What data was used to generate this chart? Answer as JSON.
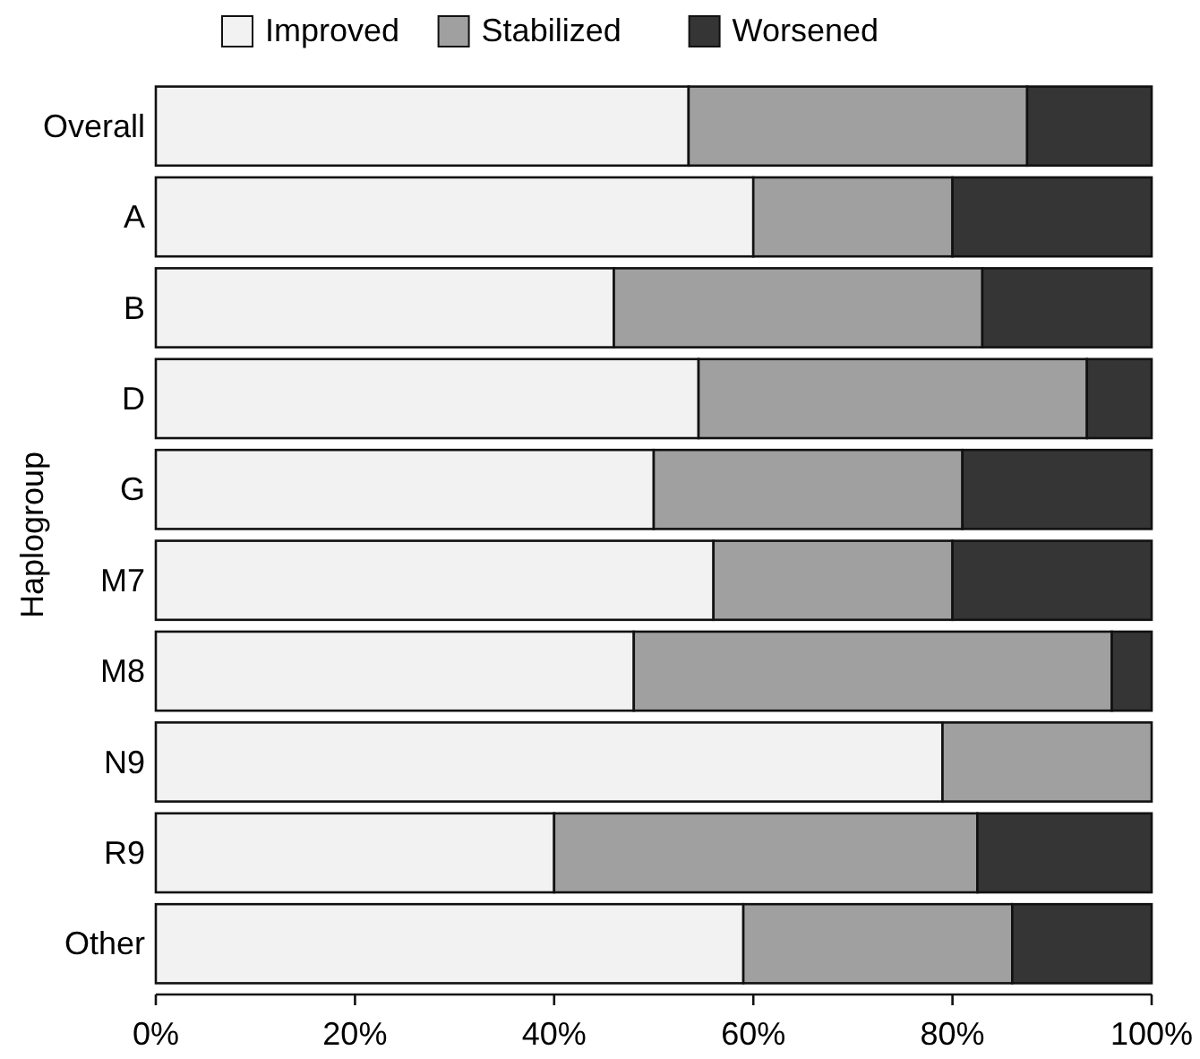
{
  "chart_data": {
    "type": "bar",
    "orientation": "horizontal",
    "stacked": true,
    "ylabel": "Haplogroup",
    "categories": [
      "Overall",
      "A",
      "B",
      "D",
      "G",
      "M7",
      "M8",
      "N9",
      "R9",
      "Other"
    ],
    "series": [
      {
        "name": "Improved",
        "color": "#f2f2f2",
        "values": [
          53.5,
          60,
          46,
          54.5,
          50,
          56,
          48,
          79,
          40,
          59
        ]
      },
      {
        "name": "Stabilized",
        "color": "#a0a0a0",
        "values": [
          34,
          20,
          37,
          39,
          31,
          24,
          48,
          21,
          42.5,
          27
        ]
      },
      {
        "name": "Worsened",
        "color": "#353535",
        "values": [
          12.5,
          20,
          17,
          6.5,
          19,
          20,
          4,
          0,
          17.5,
          14
        ]
      }
    ],
    "xlim": [
      0,
      100
    ],
    "xticks": [
      {
        "value": 0,
        "label": "0%"
      },
      {
        "value": 20,
        "label": "20%"
      },
      {
        "value": 40,
        "label": "40%"
      },
      {
        "value": 60,
        "label": "60%"
      },
      {
        "value": 80,
        "label": "80%"
      },
      {
        "value": 100,
        "label": "100%"
      }
    ],
    "legend": "top",
    "grid": false
  }
}
